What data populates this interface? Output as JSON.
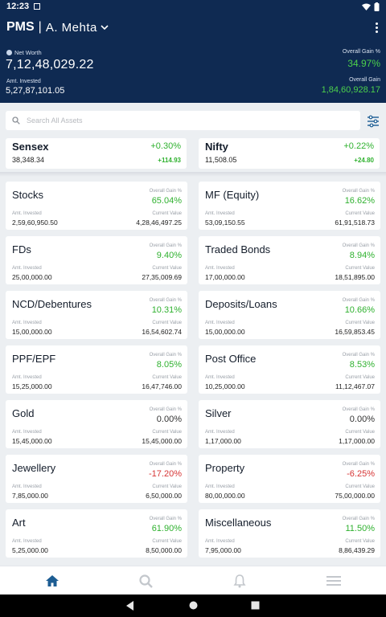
{
  "status_bar": {
    "time": "12:23"
  },
  "app_bar": {
    "brand": "PMS",
    "separator": "|",
    "user": "A. Mehta"
  },
  "summary": {
    "net_worth_label": "Net Worth",
    "net_worth_value": "7,12,48,029.22",
    "amt_invested_label": "Amt. Invested",
    "amt_invested_value": "5,27,87,101.05",
    "overall_gain_pct_label": "Overall Gain %",
    "overall_gain_pct_value": "34.97%",
    "overall_gain_label": "Overall Gain",
    "overall_gain_value": "1,84,60,928.17"
  },
  "search": {
    "placeholder": "Search All Assets"
  },
  "indices": [
    {
      "name": "Sensex",
      "change_pct": "+0.30%",
      "value": "38,348.34",
      "change": "+114.93"
    },
    {
      "name": "Nifty",
      "change_pct": "+0.22%",
      "value": "11,508.05",
      "change": "+24.80"
    }
  ],
  "labels": {
    "gain_pct": "Overall Gain %",
    "amt_invested": "Amt. Invested",
    "current_value": "Current Value"
  },
  "assets": [
    {
      "name": "Stocks",
      "gain_pct": "65.04%",
      "amt_invested": "2,59,60,950.50",
      "current_value": "4,28,46,497.25",
      "trend": "pos"
    },
    {
      "name": "MF (Equity)",
      "gain_pct": "16.62%",
      "amt_invested": "53,09,150.55",
      "current_value": "61,91,518.73",
      "trend": "pos"
    },
    {
      "name": "FDs",
      "gain_pct": "9.40%",
      "amt_invested": "25,00,000.00",
      "current_value": "27,35,009.69",
      "trend": "pos"
    },
    {
      "name": "Traded Bonds",
      "gain_pct": "8.94%",
      "amt_invested": "17,00,000.00",
      "current_value": "18,51,895.00",
      "trend": "pos"
    },
    {
      "name": "NCD/Debentures",
      "gain_pct": "10.31%",
      "amt_invested": "15,00,000.00",
      "current_value": "16,54,602.74",
      "trend": "pos"
    },
    {
      "name": "Deposits/Loans",
      "gain_pct": "10.66%",
      "amt_invested": "15,00,000.00",
      "current_value": "16,59,853.45",
      "trend": "pos"
    },
    {
      "name": "PPF/EPF",
      "gain_pct": "8.05%",
      "amt_invested": "15,25,000.00",
      "current_value": "16,47,746.00",
      "trend": "pos"
    },
    {
      "name": "Post Office",
      "gain_pct": "8.53%",
      "amt_invested": "10,25,000.00",
      "current_value": "11,12,467.07",
      "trend": "pos"
    },
    {
      "name": "Gold",
      "gain_pct": "0.00%",
      "amt_invested": "15,45,000.00",
      "current_value": "15,45,000.00",
      "trend": "neu"
    },
    {
      "name": "Silver",
      "gain_pct": "0.00%",
      "amt_invested": "1,17,000.00",
      "current_value": "1,17,000.00",
      "trend": "neu"
    },
    {
      "name": "Jewellery",
      "gain_pct": "-17.20%",
      "amt_invested": "7,85,000.00",
      "current_value": "6,50,000.00",
      "trend": "neg"
    },
    {
      "name": "Property",
      "gain_pct": "-6.25%",
      "amt_invested": "80,00,000.00",
      "current_value": "75,00,000.00",
      "trend": "neg"
    },
    {
      "name": "Art",
      "gain_pct": "61.90%",
      "amt_invested": "5,25,000.00",
      "current_value": "8,50,000.00",
      "trend": "pos"
    },
    {
      "name": "Miscellaneous",
      "gain_pct": "11.50%",
      "amt_invested": "7,95,000.00",
      "current_value": "8,86,439.29",
      "trend": "pos"
    }
  ],
  "bottom_nav": [
    {
      "icon": "home-icon",
      "active": true
    },
    {
      "icon": "search-icon",
      "active": false
    },
    {
      "icon": "bell-icon",
      "active": false
    },
    {
      "icon": "menu-icon",
      "active": false
    }
  ],
  "colors": {
    "header": "#0f2a52",
    "positive": "#2fb12f",
    "negative": "#d63535",
    "active_tab": "#1d5d93"
  }
}
